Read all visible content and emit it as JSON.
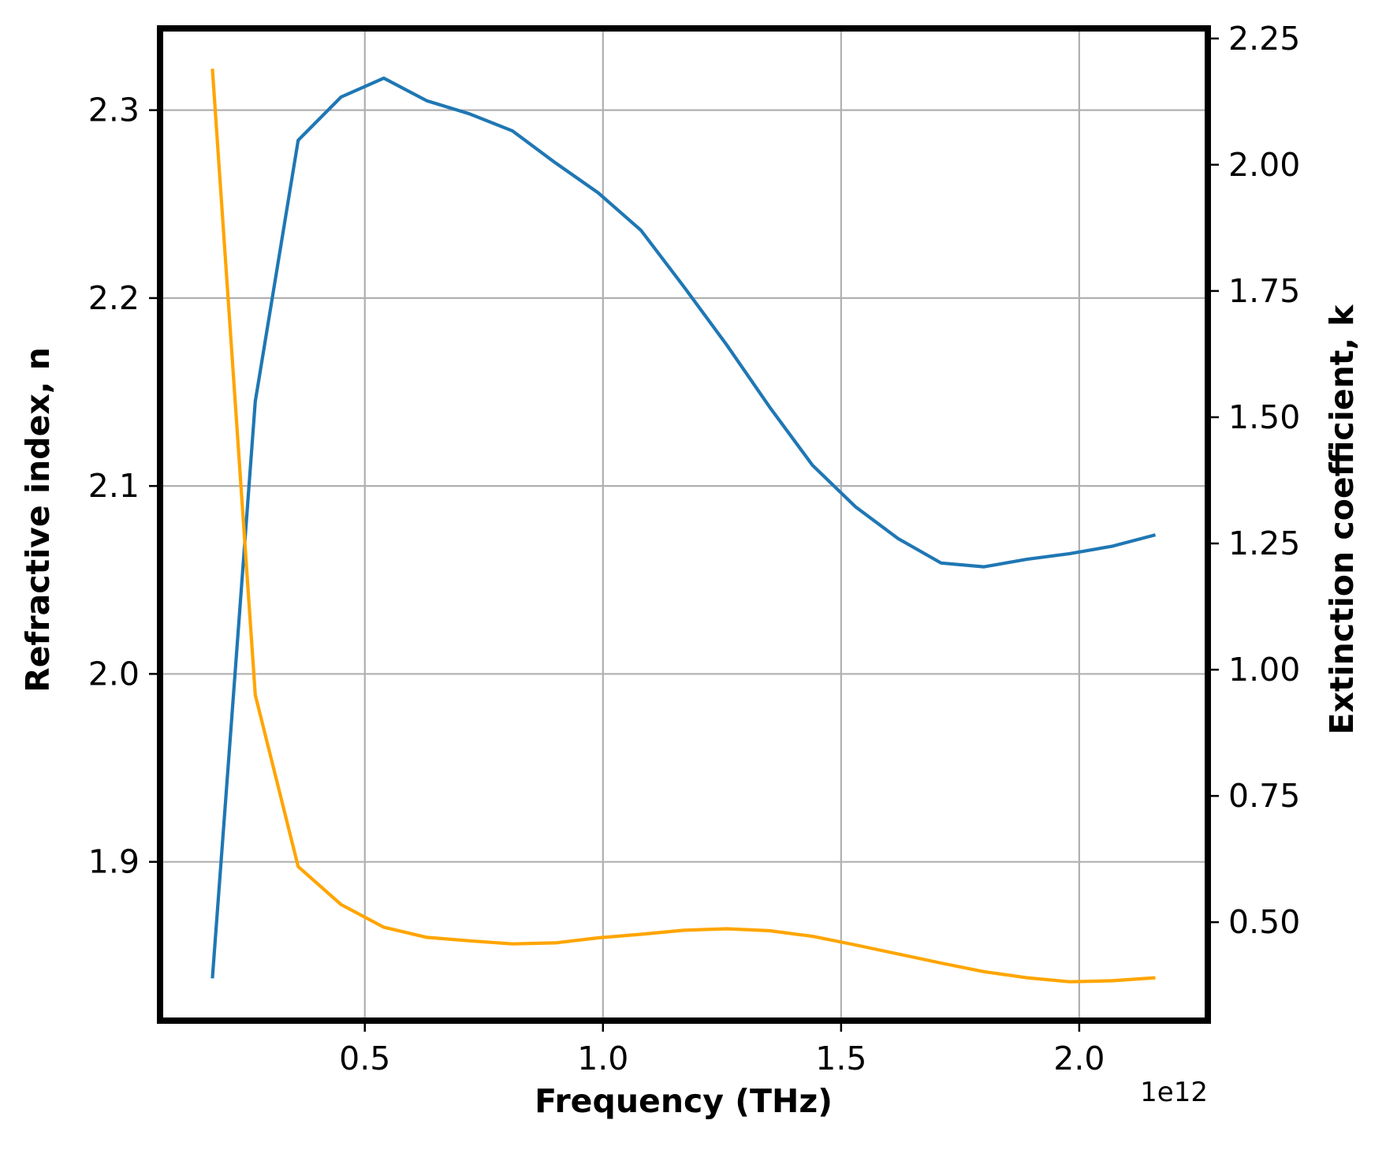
{
  "chart_data": {
    "type": "line",
    "xlabel": "Frequency (THz)",
    "x_offset_text": "1e12",
    "ylabel_left": "Refractive index, n",
    "ylabel_right": "Extinction coefficient, k",
    "xlim": [
      70000000000.0,
      2270000000000.0
    ],
    "ylim_left": [
      1.8155,
      2.3435
    ],
    "ylim_right": [
      0.305,
      2.27
    ],
    "x_ticks": [
      500000000000.0,
      1000000000000.0,
      1500000000000.0,
      2000000000000.0
    ],
    "x_tick_labels": [
      "0.5",
      "1.0",
      "1.5",
      "2.0"
    ],
    "y_ticks_left": [
      1.9,
      2.0,
      2.1,
      2.2,
      2.3
    ],
    "y_tick_labels_left": [
      "1.9",
      "2.0",
      "2.1",
      "2.2",
      "2.3"
    ],
    "y_ticks_right": [
      0.5,
      0.75,
      1.0,
      1.25,
      1.5,
      1.75,
      2.0,
      2.25
    ],
    "y_tick_labels_right": [
      "0.50",
      "0.75",
      "1.00",
      "1.25",
      "1.50",
      "1.75",
      "2.00",
      "2.25"
    ],
    "grid": true,
    "x": [
      180000000000.0,
      270000000000.0,
      360000000000.0,
      450000000000.0,
      540000000000.0,
      630000000000.0,
      720000000000.0,
      810000000000.0,
      900000000000.0,
      990000000000.0,
      1080000000000.0,
      1170000000000.0,
      1260000000000.0,
      1350000000000.0,
      1440000000000.0,
      1530000000000.0,
      1620000000000.0,
      1710000000000.0,
      1800000000000.0,
      1890000000000.0,
      1980000000000.0,
      2070000000000.0,
      2160000000000.0
    ],
    "series": [
      {
        "axis": "left",
        "color": "#1f77b4",
        "values": [
          1.838,
          2.145,
          2.284,
          2.307,
          2.317,
          2.305,
          2.298,
          2.289,
          2.272,
          2.256,
          2.236,
          2.206,
          2.175,
          2.142,
          2.111,
          2.089,
          2.072,
          2.059,
          2.057,
          2.061,
          2.064,
          2.068,
          2.074
        ]
      },
      {
        "axis": "right",
        "color": "#ffa500",
        "values": [
          2.19,
          0.95,
          0.61,
          0.535,
          0.49,
          0.47,
          0.463,
          0.457,
          0.459,
          0.469,
          0.476,
          0.484,
          0.487,
          0.483,
          0.472,
          0.455,
          0.437,
          0.419,
          0.402,
          0.39,
          0.382,
          0.384,
          0.39
        ]
      }
    ]
  }
}
